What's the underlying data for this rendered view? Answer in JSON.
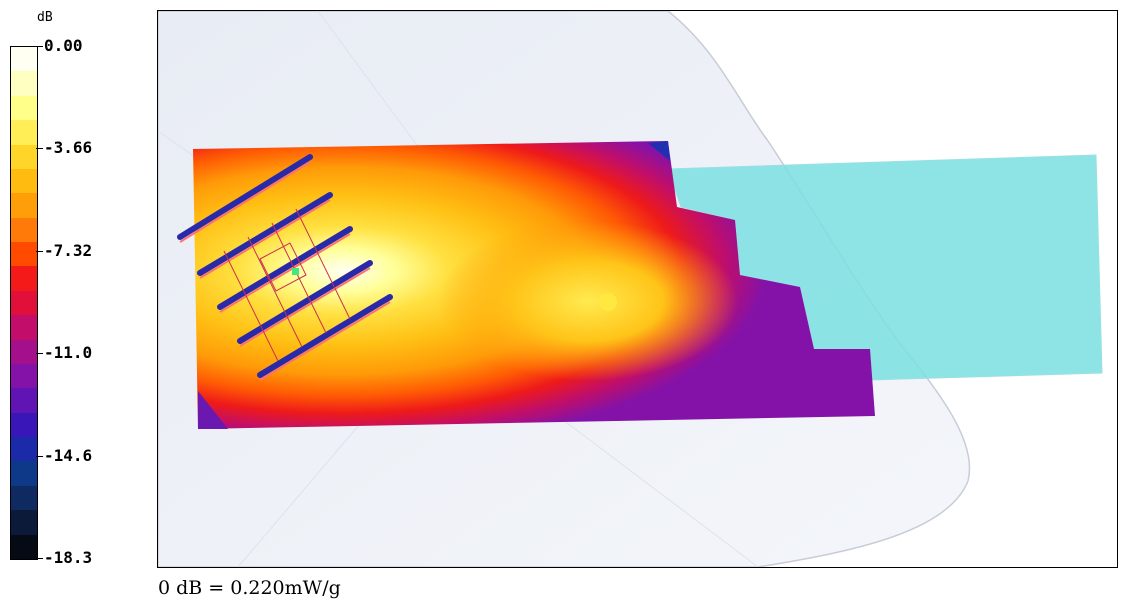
{
  "chart_data": {
    "type": "heatmap",
    "title": "",
    "colorbar": {
      "unit": "dB",
      "ticks": [
        "0.00",
        "-3.66",
        "-7.32",
        "-11.0",
        "-14.6",
        "-18.3"
      ],
      "range": [
        -18.3,
        0.0
      ],
      "colors": [
        "#fffff2",
        "#ffffc2",
        "#ffff8a",
        "#ffee55",
        "#ffd52a",
        "#ffbb10",
        "#ff9e08",
        "#ff7a08",
        "#ff4a00",
        "#f41a1a",
        "#e0103a",
        "#c20e6a",
        "#a4108c",
        "#8412a8",
        "#6014b4",
        "#3816b8",
        "#1a2aa8",
        "#0e3888",
        "#0e2a60",
        "#0a1a38",
        "#050a14"
      ]
    },
    "peak_value_db": 0.0,
    "min_value_db": -18.3
  },
  "reference_note": "0 dB = 0.220mW/g",
  "icons": [
    "antenna-array-icon",
    "probe-point-icon"
  ]
}
